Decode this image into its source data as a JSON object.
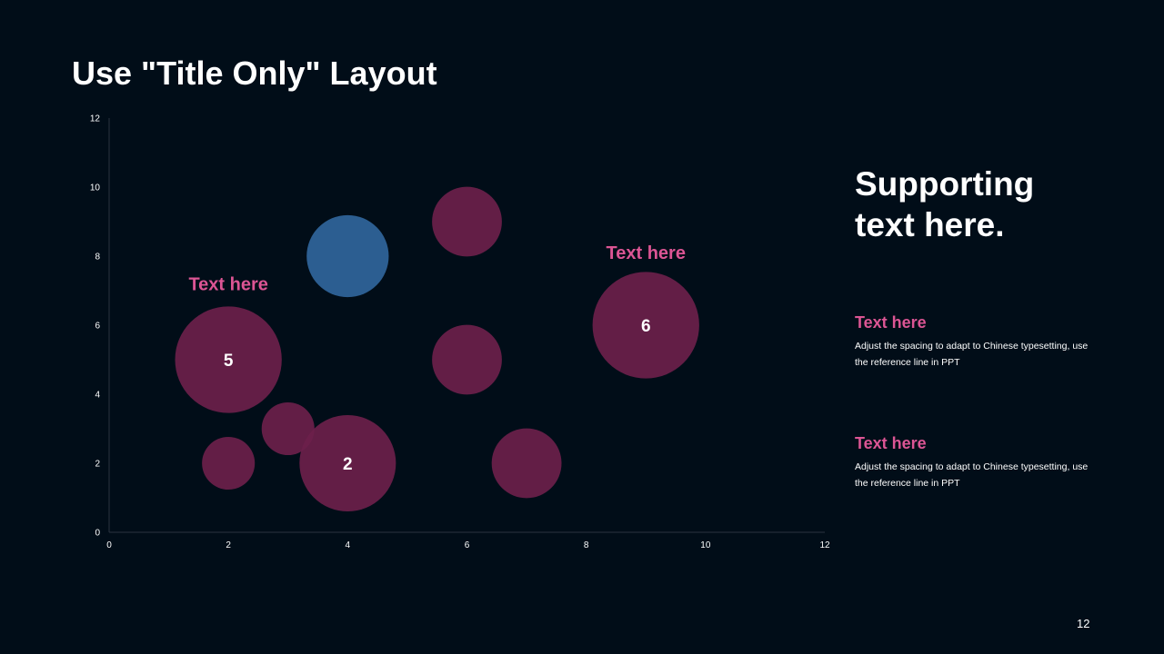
{
  "slide": {
    "title": "Use \"Title Only\" Layout",
    "page_number": "12"
  },
  "side": {
    "heading": "Supporting text here.",
    "notes": [
      {
        "title": "Text here",
        "body": "Adjust the spacing to adapt to Chinese typesetting, use the reference line in PPT"
      },
      {
        "title": "Text here",
        "body": "Adjust the spacing to adapt to Chinese typesetting, use the reference line in PPT"
      }
    ]
  },
  "colors": {
    "background": "#010d18",
    "bubble_default": "#6b1f4b",
    "bubble_highlight": "#2e6398",
    "accent_text": "#dc5594",
    "axis": "#2a3440"
  },
  "chart_data": {
    "type": "bubble",
    "xlim": [
      0,
      12
    ],
    "ylim": [
      0,
      12
    ],
    "x_ticks": [
      0,
      2,
      4,
      6,
      8,
      10,
      12
    ],
    "y_ticks": [
      0,
      2,
      4,
      6,
      8,
      10,
      12
    ],
    "grid": false,
    "points": [
      {
        "x": 2,
        "y": 5,
        "size": 5,
        "label": "5",
        "highlight": false
      },
      {
        "x": 2,
        "y": 2,
        "size": 1.2,
        "label": "",
        "highlight": false
      },
      {
        "x": 3,
        "y": 3,
        "size": 1.2,
        "label": "",
        "highlight": false
      },
      {
        "x": 4,
        "y": 2,
        "size": 4,
        "label": "2",
        "highlight": false
      },
      {
        "x": 4,
        "y": 8,
        "size": 2.9,
        "label": "",
        "highlight": true
      },
      {
        "x": 6,
        "y": 9,
        "size": 2.1,
        "label": "",
        "highlight": false
      },
      {
        "x": 6,
        "y": 5,
        "size": 2.1,
        "label": "",
        "highlight": false
      },
      {
        "x": 7,
        "y": 2,
        "size": 2.1,
        "label": "",
        "highlight": false
      },
      {
        "x": 9,
        "y": 6,
        "size": 5,
        "label": "6",
        "highlight": false
      }
    ],
    "annotations": [
      {
        "text": "Text here",
        "x": 2,
        "y": 7.2
      },
      {
        "text": "Text here",
        "x": 9,
        "y": 8.1
      }
    ]
  }
}
